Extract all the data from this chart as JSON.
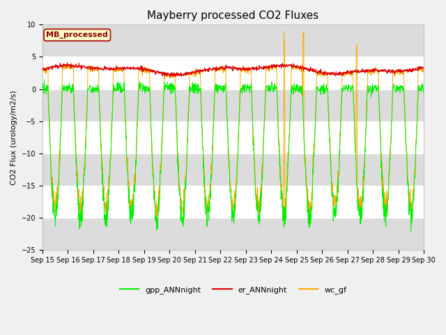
{
  "title": "Mayberry processed CO2 Fluxes",
  "ylabel": "CO2 Flux (urology/m2/s)",
  "ylim": [
    -25,
    10
  ],
  "yticks": [
    -25,
    -20,
    -15,
    -10,
    -5,
    0,
    5,
    10
  ],
  "xlabel_dates": [
    "Sep 15",
    "Sep 16",
    "Sep 17",
    "Sep 18",
    "Sep 19",
    "Sep 20",
    "Sep 21",
    "Sep 22",
    "Sep 23",
    "Sep 24",
    "Sep 25",
    "Sep 26",
    "Sep 27",
    "Sep 28",
    "Sep 29",
    "Sep 30"
  ],
  "annotation_label": "MB_processed",
  "annotation_facecolor": "#ffffcc",
  "annotation_edgecolor": "#aa0000",
  "legend_labels": [
    "gpp_ANNnight",
    "er_ANNnight",
    "wc_gf"
  ],
  "colors": {
    "gpp": "#00ee00",
    "er": "#dd0000",
    "wc": "#ffaa00"
  },
  "fig_facecolor": "#f0f0f0",
  "plot_bg_color": "#ffffff",
  "band_color": "#dcdcdc",
  "n_days": 15,
  "points_per_day": 96,
  "title_fontsize": 11,
  "ylabel_fontsize": 8,
  "tick_fontsize": 7,
  "legend_fontsize": 8
}
